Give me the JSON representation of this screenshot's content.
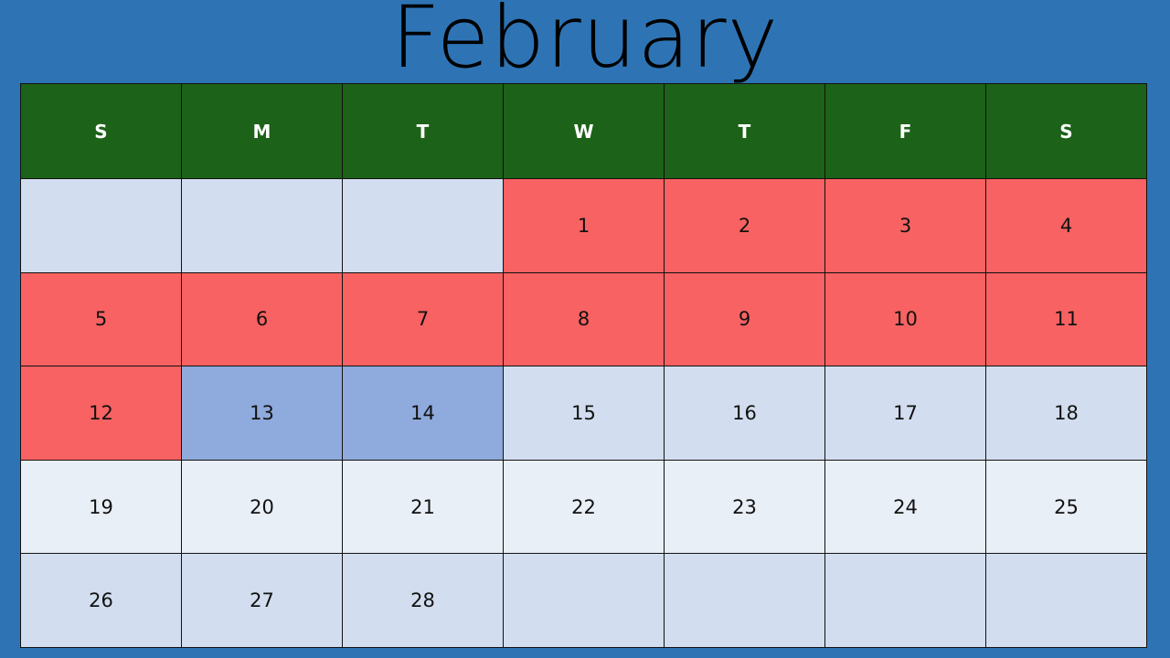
{
  "calendar": {
    "month": "February",
    "weekdays": [
      "S",
      "M",
      "T",
      "W",
      "T",
      "F",
      "S"
    ],
    "weeks": [
      [
        "",
        "",
        "",
        "1",
        "2",
        "3",
        "4"
      ],
      [
        "5",
        "6",
        "7",
        "8",
        "9",
        "10",
        "11"
      ],
      [
        "12",
        "13",
        "14",
        "15",
        "16",
        "17",
        "18"
      ],
      [
        "19",
        "20",
        "21",
        "22",
        "23",
        "24",
        "25"
      ],
      [
        "26",
        "27",
        "28",
        "",
        "",
        "",
        ""
      ]
    ]
  },
  "colors": {
    "background": "#2E74B5",
    "header": "#1C6218",
    "highlight_red": "#F86262",
    "highlight_blue": "#8FAADC",
    "cell_light": "#D2DEEF",
    "cell_pale": "#E9EFF7"
  }
}
